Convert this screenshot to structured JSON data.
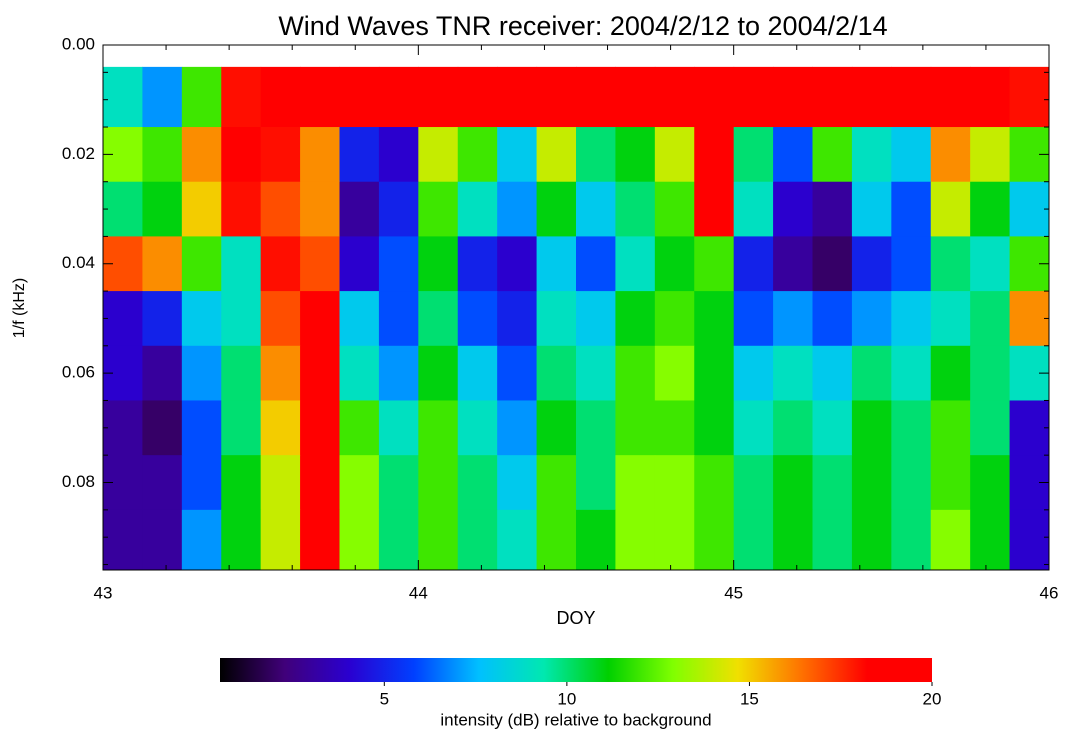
{
  "chart_data": {
    "type": "heatmap",
    "title": "Wind Waves TNR receiver: 2004/2/12 to 2004/2/14",
    "x_label": "DOY",
    "y_label": "1/f (kHz)",
    "xlim": [
      43,
      46
    ],
    "ylim": [
      0,
      0.096
    ],
    "y_inverted": true,
    "xticks": [
      43,
      44,
      45,
      46
    ],
    "yticks": [
      {
        "value": 0,
        "label": "0.00"
      },
      {
        "value": 0.02,
        "label": "0.02"
      },
      {
        "value": 0.04,
        "label": "0.04"
      },
      {
        "value": 0.06,
        "label": "0.06"
      },
      {
        "value": 0.08,
        "label": "0.08"
      }
    ],
    "x_minor_ticks": [
      43.2,
      43.4,
      43.6,
      43.8,
      44.2,
      44.4,
      44.6,
      44.8,
      45.2,
      45.4,
      45.6,
      45.8
    ],
    "y_minor_ticks": [
      0.005,
      0.01,
      0.015,
      0.025,
      0.03,
      0.035,
      0.045,
      0.05,
      0.055,
      0.065,
      0.07,
      0.075,
      0.085,
      0.09,
      0.095
    ],
    "x_edges": [
      43,
      43.125,
      43.25,
      43.375,
      43.5,
      43.625,
      43.75,
      43.875,
      44,
      44.125,
      44.25,
      44.375,
      44.5,
      44.625,
      44.75,
      44.875,
      45,
      45.125,
      45.25,
      45.375,
      45.5,
      45.625,
      45.75,
      45.875,
      46
    ],
    "y_edges": [
      0.004,
      0.015,
      0.025,
      0.035,
      0.045,
      0.055,
      0.065,
      0.075,
      0.085,
      0.096
    ],
    "z": [
      [
        9,
        7,
        12,
        18,
        20,
        20,
        20,
        20,
        20,
        20,
        20,
        20,
        20,
        19,
        20,
        20,
        20,
        20,
        20,
        20,
        20,
        20,
        20,
        18
      ],
      [
        13,
        12,
        16,
        20,
        18,
        16,
        5,
        4,
        14,
        12,
        8,
        14,
        10,
        11,
        14,
        19,
        10,
        6,
        12,
        9,
        8,
        16,
        14,
        12
      ],
      [
        10,
        11,
        15,
        18,
        17,
        16,
        3,
        5,
        12,
        9,
        7,
        11,
        8,
        10,
        12,
        19,
        9,
        4,
        3,
        8,
        6,
        14,
        11,
        8
      ],
      [
        17,
        16,
        12,
        9,
        18,
        17,
        4,
        6,
        11,
        5,
        4,
        8,
        6,
        9,
        11,
        12,
        5,
        3,
        2,
        5,
        6,
        10,
        9,
        12
      ],
      [
        4,
        5,
        8,
        9,
        17,
        19,
        8,
        6,
        10,
        6,
        5,
        9,
        8,
        11,
        12,
        11,
        6,
        7,
        6,
        7,
        8,
        9,
        10,
        16
      ],
      [
        4,
        3,
        7,
        10,
        16,
        19,
        9,
        7,
        11,
        8,
        6,
        10,
        9,
        12,
        13,
        11,
        8,
        9,
        8,
        10,
        9,
        11,
        10,
        9
      ],
      [
        3,
        2,
        6,
        10,
        15,
        20,
        12,
        9,
        12,
        9,
        7,
        11,
        10,
        12,
        12,
        11,
        9,
        10,
        9,
        11,
        10,
        12,
        10,
        4
      ],
      [
        3,
        3,
        6,
        11,
        14,
        20,
        13,
        10,
        12,
        10,
        8,
        12,
        10,
        13,
        13,
        12,
        10,
        11,
        10,
        11,
        10,
        12,
        11,
        4
      ],
      [
        3,
        3,
        7,
        11,
        14,
        19,
        13,
        10,
        12,
        10,
        9,
        12,
        11,
        13,
        13,
        12,
        10,
        11,
        10,
        11,
        10,
        13,
        11,
        4
      ]
    ],
    "colormap": [
      "#000000",
      "#40007a",
      "#2a00d0",
      "#0040ff",
      "#00c0ff",
      "#00e8b0",
      "#00d000",
      "#80ff00",
      "#f0e000",
      "#ff7000",
      "#ff0000",
      "#ff0000"
    ],
    "colorbar": {
      "label": "intensity (dB) relative to background",
      "clim": [
        0.5,
        20
      ],
      "ticks": [
        5,
        10,
        15,
        20
      ]
    }
  }
}
